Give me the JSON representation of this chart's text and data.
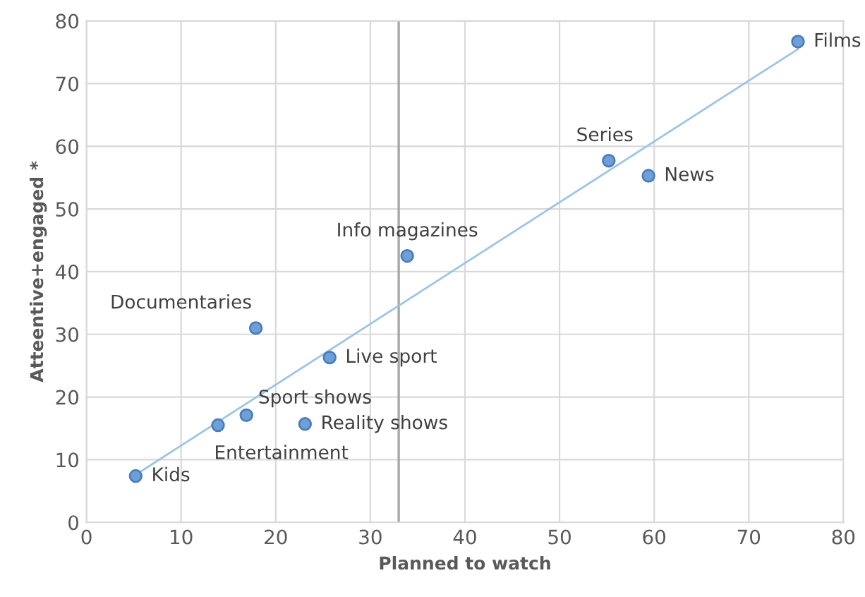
{
  "chart_data": {
    "type": "scatter",
    "xlabel": "Planned to watch",
    "ylabel": "Atteentive+engaged *",
    "xlim": [
      0,
      80
    ],
    "ylim": [
      0,
      80
    ],
    "xticks": [
      0,
      10,
      20,
      30,
      40,
      50,
      60,
      70,
      80
    ],
    "yticks": [
      0,
      10,
      20,
      30,
      40,
      50,
      60,
      70,
      80
    ],
    "grid": true,
    "series": [
      {
        "marker": "circle",
        "color": "#6f9fd8",
        "x": [
          5.2,
          13.9,
          16.9,
          23.1,
          17.9,
          25.7,
          33.9,
          55.2,
          59.4,
          75.2
        ],
        "values": [
          7.4,
          15.5,
          17.1,
          15.7,
          31.0,
          26.3,
          42.5,
          57.7,
          55.3,
          76.7
        ]
      },
      {
        "type": "line",
        "color": "#9dc3e6",
        "x": [
          5.2,
          75.2
        ],
        "values": [
          7.6,
          75.5
        ]
      }
    ],
    "ref_lines": [
      {
        "axis": "x",
        "value": 33,
        "color": "#a6a6a6"
      }
    ],
    "annotations": [
      {
        "text": "Kids",
        "x": 5.2,
        "y": 7.4
      },
      {
        "text": "Entertainment",
        "x": 13.9,
        "y": 15.5
      },
      {
        "text": "Sport shows",
        "x": 16.9,
        "y": 17.1
      },
      {
        "text": "Reality shows",
        "x": 23.1,
        "y": 15.7
      },
      {
        "text": "Documentaries",
        "x": 17.9,
        "y": 31.0
      },
      {
        "text": "Live sport",
        "x": 25.7,
        "y": 26.3
      },
      {
        "text": "Info magazines",
        "x": 33.9,
        "y": 42.5
      },
      {
        "text": "Series",
        "x": 55.2,
        "y": 57.7
      },
      {
        "text": "News",
        "x": 59.4,
        "y": 55.3
      },
      {
        "text": "Films",
        "x": 75.2,
        "y": 76.7
      }
    ]
  }
}
